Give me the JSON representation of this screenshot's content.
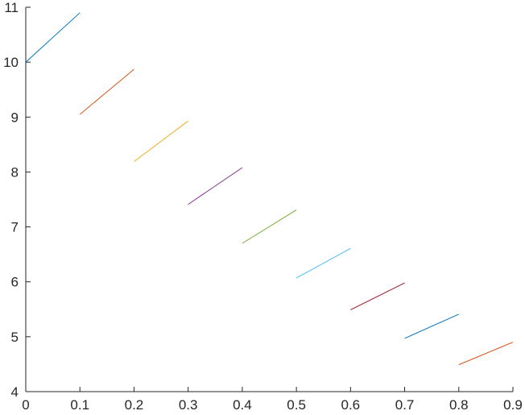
{
  "chart_data": {
    "type": "line",
    "title": "",
    "xlabel": "",
    "ylabel": "",
    "xlim": [
      0,
      0.9
    ],
    "ylim": [
      4,
      11
    ],
    "grid": false,
    "legend": "none",
    "x_ticks": [
      "0",
      "0.1",
      "0.2",
      "0.3",
      "0.4",
      "0.5",
      "0.6",
      "0.7",
      "0.8",
      "0.9"
    ],
    "y_ticks": [
      "4",
      "5",
      "6",
      "7",
      "8",
      "9",
      "10",
      "11"
    ],
    "series": [
      {
        "color": "#0072BD",
        "x": [
          0.0,
          0.1
        ],
        "y": [
          10.0,
          10.9
        ]
      },
      {
        "color": "#D95319",
        "x": [
          0.1,
          0.2
        ],
        "y": [
          9.05,
          9.87
        ]
      },
      {
        "color": "#EDB120",
        "x": [
          0.2,
          0.3
        ],
        "y": [
          8.19,
          8.93
        ]
      },
      {
        "color": "#7E2F8E",
        "x": [
          0.3,
          0.4
        ],
        "y": [
          7.41,
          8.08
        ]
      },
      {
        "color": "#77AC30",
        "x": [
          0.4,
          0.5
        ],
        "y": [
          6.7,
          7.31
        ]
      },
      {
        "color": "#4DBEEE",
        "x": [
          0.5,
          0.6
        ],
        "y": [
          6.07,
          6.61
        ]
      },
      {
        "color": "#A2142F",
        "x": [
          0.6,
          0.7
        ],
        "y": [
          5.49,
          5.98
        ]
      },
      {
        "color": "#0072BD",
        "x": [
          0.7,
          0.8
        ],
        "y": [
          4.97,
          5.41
        ]
      },
      {
        "color": "#D95319",
        "x": [
          0.8,
          0.9
        ],
        "y": [
          4.49,
          4.9
        ]
      }
    ]
  }
}
